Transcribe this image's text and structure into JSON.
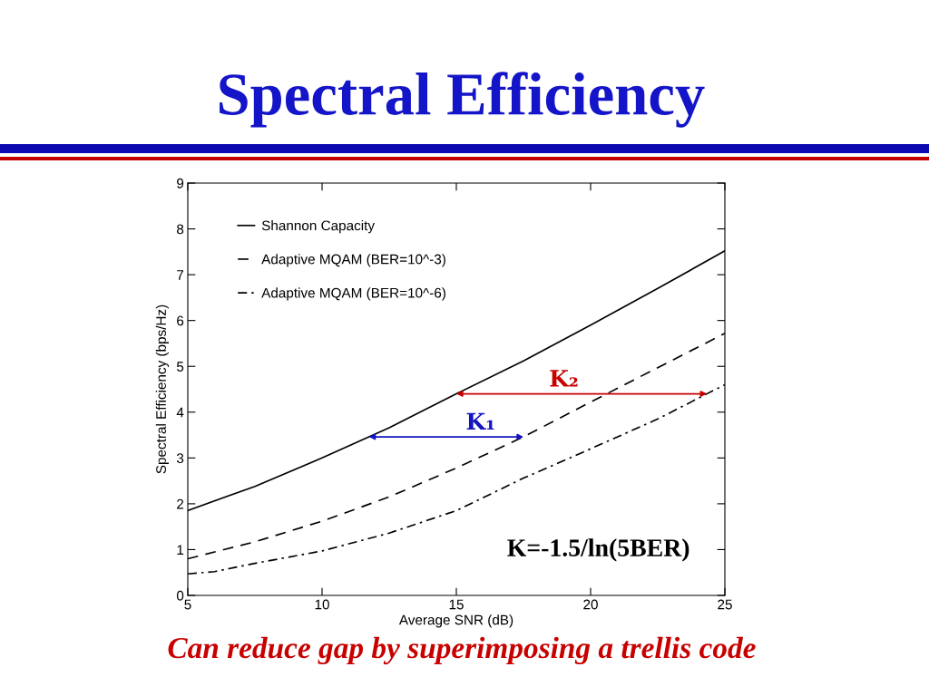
{
  "chart_data": {
    "type": "line",
    "title": "Spectral Efficiency",
    "xlabel": "Average SNR (dB)",
    "ylabel": "Spectral Efficiency (bps/Hz)",
    "series": [
      {
        "name": "Shannon Capacity",
        "color": "#000000",
        "line_style": "solid",
        "x": [
          5,
          7.5,
          10,
          12.5,
          15,
          17.5,
          20,
          22.5,
          25
        ],
        "values": [
          1.85,
          2.38,
          3.0,
          3.66,
          4.4,
          5.12,
          5.9,
          6.7,
          7.52
        ]
      },
      {
        "name": "Adaptive MQAM (BER=10^-3)",
        "color": "#000000",
        "line_style": "dashed",
        "x": [
          5,
          7.5,
          10,
          12.5,
          15,
          17.5,
          20,
          22.5,
          25
        ],
        "values": [
          0.8,
          1.17,
          1.62,
          2.15,
          2.78,
          3.46,
          4.22,
          4.97,
          5.72
        ]
      },
      {
        "name": "Adaptive MQAM (BER=10^-6)",
        "color": "#000000",
        "line_style": "dashdot",
        "x": [
          5,
          6,
          7.5,
          10,
          12.5,
          15,
          17.5,
          20,
          22.5,
          25
        ],
        "values": [
          0.47,
          0.52,
          0.7,
          0.97,
          1.36,
          1.85,
          2.56,
          3.2,
          3.85,
          4.6
        ]
      }
    ],
    "annotations": [
      {
        "text": "K₁",
        "x": 17.5,
        "y": 3.46
      },
      {
        "text": "K₂",
        "x": 20.6,
        "y": 4.4
      },
      "K=-1.5/ln(5BER)",
      "Can reduce gap by superimposing a trellis code"
    ],
    "legend": "top left",
    "grid": false,
    "xlim": [
      5,
      25
    ],
    "ylim": [
      0,
      9
    ],
    "xticks": [
      5,
      10,
      15,
      20,
      25
    ],
    "yticks": [
      0,
      1,
      2,
      3,
      4,
      5,
      6,
      7,
      8,
      9
    ]
  }
}
